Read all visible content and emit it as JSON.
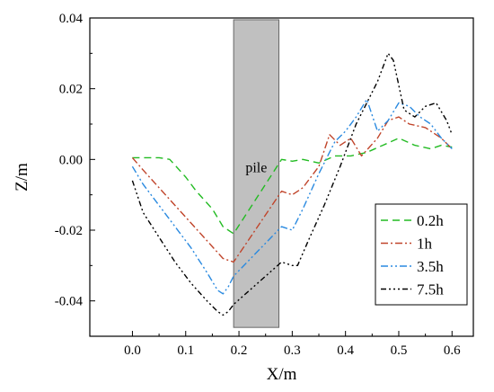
{
  "chart_data": {
    "type": "line",
    "xlabel": "X/m",
    "ylabel": "Z/m",
    "xlim": [
      -0.08,
      0.64
    ],
    "ylim": [
      -0.05,
      0.04
    ],
    "xticks": [
      "0.0",
      "0.1",
      "0.2",
      "0.3",
      "0.4",
      "0.5",
      "0.6"
    ],
    "yticks": [
      "0.04",
      "0.02",
      "0.00",
      "-0.02",
      "-0.04"
    ],
    "xtick_values": [
      0.0,
      0.1,
      0.2,
      0.3,
      0.4,
      0.5,
      0.6
    ],
    "ytick_values": [
      0.04,
      0.02,
      0.0,
      -0.02,
      -0.04
    ],
    "grid": false,
    "legend_position": "bottom-right",
    "annotation": {
      "label": "pile",
      "x_range": [
        0.19,
        0.275
      ],
      "y_range": [
        -0.0475,
        0.0395
      ],
      "color": "#c0c0c0"
    },
    "series": [
      {
        "name": "0.2h",
        "color": "#22bb22",
        "dash": "8,5",
        "x": [
          0.0,
          0.02,
          0.05,
          0.07,
          0.1,
          0.12,
          0.15,
          0.17,
          0.19,
          0.28,
          0.3,
          0.32,
          0.35,
          0.38,
          0.41,
          0.44,
          0.47,
          0.5,
          0.53,
          0.56,
          0.58,
          0.6
        ],
        "y": [
          0.0005,
          0.0005,
          0.0005,
          0.0,
          -0.005,
          -0.009,
          -0.014,
          -0.019,
          -0.021,
          0.0,
          -0.0005,
          0.0,
          -0.001,
          0.001,
          0.001,
          0.002,
          0.004,
          0.006,
          0.004,
          0.003,
          0.004,
          0.0035
        ]
      },
      {
        "name": "1h",
        "color": "#c0442a",
        "dash": "8,3,2,3",
        "x": [
          0.0,
          0.02,
          0.05,
          0.08,
          0.11,
          0.14,
          0.17,
          0.19,
          0.28,
          0.3,
          0.32,
          0.35,
          0.37,
          0.39,
          0.41,
          0.43,
          0.46,
          0.48,
          0.5,
          0.52,
          0.55,
          0.58,
          0.6
        ],
        "y": [
          0.0005,
          -0.003,
          -0.008,
          -0.013,
          -0.018,
          -0.023,
          -0.028,
          -0.029,
          -0.009,
          -0.01,
          -0.008,
          -0.002,
          0.007,
          0.004,
          0.006,
          0.001,
          0.006,
          0.011,
          0.012,
          0.01,
          0.009,
          0.006,
          0.003
        ]
      },
      {
        "name": "3.5h",
        "color": "#2a8ae0",
        "dash": "8,3,2,3,2,3",
        "x": [
          0.0,
          0.02,
          0.05,
          0.08,
          0.11,
          0.14,
          0.16,
          0.17,
          0.18,
          0.19,
          0.28,
          0.3,
          0.32,
          0.35,
          0.38,
          0.4,
          0.42,
          0.44,
          0.46,
          0.48,
          0.5,
          0.52,
          0.54,
          0.56,
          0.58,
          0.6
        ],
        "y": [
          -0.002,
          -0.007,
          -0.013,
          -0.019,
          -0.025,
          -0.032,
          -0.037,
          -0.038,
          -0.036,
          -0.033,
          -0.019,
          -0.02,
          -0.014,
          -0.004,
          0.005,
          0.008,
          0.012,
          0.017,
          0.008,
          0.011,
          0.016,
          0.015,
          0.012,
          0.01,
          0.006,
          0.003
        ]
      },
      {
        "name": "7.5h",
        "color": "#000000",
        "dash": "6,3,2,3,2,3,2,3",
        "x": [
          0.0,
          0.02,
          0.05,
          0.08,
          0.11,
          0.14,
          0.16,
          0.17,
          0.18,
          0.19,
          0.28,
          0.3,
          0.31,
          0.33,
          0.36,
          0.39,
          0.42,
          0.44,
          0.46,
          0.48,
          0.49,
          0.51,
          0.53,
          0.55,
          0.57,
          0.59,
          0.6
        ],
        "y": [
          -0.006,
          -0.015,
          -0.022,
          -0.029,
          -0.035,
          -0.04,
          -0.043,
          -0.044,
          -0.043,
          -0.041,
          -0.029,
          -0.03,
          -0.03,
          -0.023,
          -0.013,
          -0.002,
          0.01,
          0.016,
          0.022,
          0.03,
          0.028,
          0.014,
          0.012,
          0.015,
          0.016,
          0.011,
          0.007
        ]
      }
    ]
  }
}
